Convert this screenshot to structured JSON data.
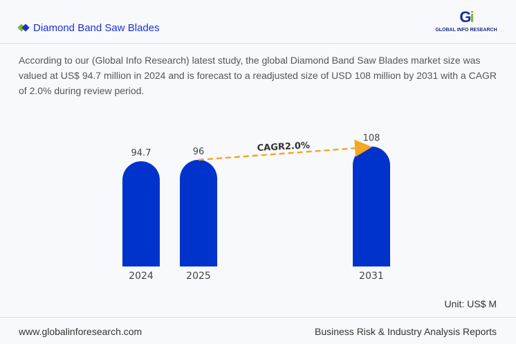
{
  "header": {
    "title": "Diamond Band Saw Blades",
    "logo_text": "GLOBAL INFO RESEARCH",
    "accent": "#1a33cc"
  },
  "description": "According to our (Global Info Research) latest study, the global Diamond Band Saw Blades market size was valued at US$ 94.7 million in 2024 and is forecast to a readjusted size of USD 108 million by 2031 with a CAGR of 2.0% during review period.",
  "chart_data": {
    "type": "bar",
    "categories": [
      "2024",
      "2025",
      "2031"
    ],
    "values": [
      94.7,
      96,
      108
    ],
    "labels": [
      "94.7",
      "96",
      "108"
    ],
    "annotation": "CAGR2.0%",
    "ylim": [
      0,
      120
    ],
    "bar_color": "#0033cc",
    "arrow_color": "#f5a623"
  },
  "unit": "Unit: US$ M",
  "footer": {
    "website": "www.globalinforesearch.com",
    "tagline": "Business Risk & Industry Analysis Reports"
  }
}
